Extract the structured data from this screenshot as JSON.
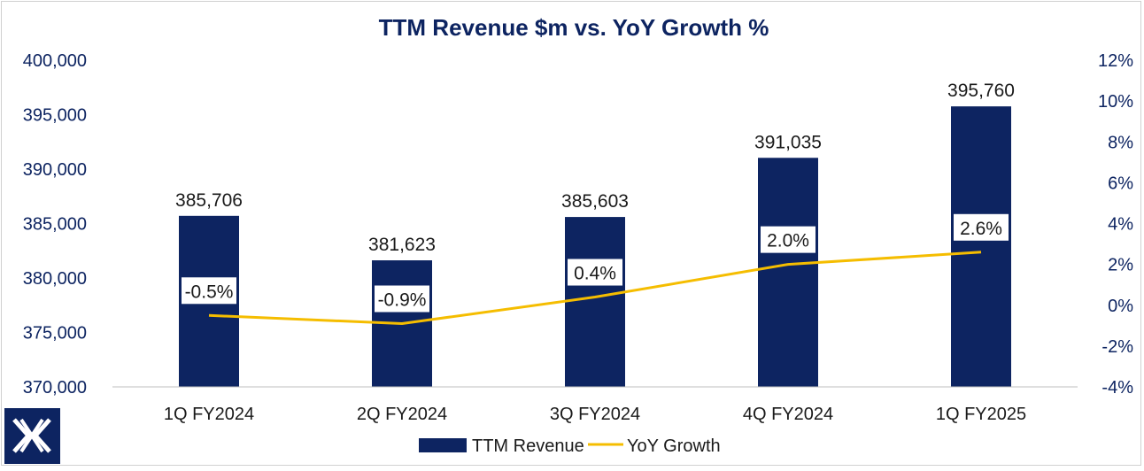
{
  "chart_data": {
    "type": "bar+line",
    "title": "TTM Revenue $m vs. YoY Growth %",
    "categories": [
      "1Q FY2024",
      "2Q FY2024",
      "3Q FY2024",
      "4Q FY2024",
      "1Q FY2025"
    ],
    "series": [
      {
        "name": "TTM Revenue",
        "type": "bar",
        "axis": "left",
        "values": [
          385706,
          381623,
          385603,
          391035,
          395760
        ],
        "labels": [
          "385,706",
          "381,623",
          "385,603",
          "391,035",
          "395,760"
        ]
      },
      {
        "name": "YoY Growth",
        "type": "line",
        "axis": "right",
        "values": [
          -0.5,
          -0.9,
          0.4,
          2.0,
          2.6
        ],
        "labels": [
          "-0.5%",
          "-0.9%",
          "0.4%",
          "2.0%",
          "2.6%"
        ]
      }
    ],
    "y_left": {
      "min": 370000,
      "max": 400000,
      "ticks": [
        370000,
        375000,
        380000,
        385000,
        390000,
        395000,
        400000
      ],
      "tick_labels": [
        "370,000",
        "375,000",
        "380,000",
        "385,000",
        "390,000",
        "395,000",
        "400,000"
      ]
    },
    "y_right": {
      "min": -4,
      "max": 12,
      "ticks": [
        -4,
        -2,
        0,
        2,
        4,
        6,
        8,
        10,
        12
      ],
      "tick_labels": [
        "-4%",
        "-2%",
        "0%",
        "2%",
        "4%",
        "6%",
        "8%",
        "10%",
        "12%"
      ]
    },
    "grid": false,
    "legend_position": "bottom",
    "colors": {
      "bar": "#0d2461",
      "line": "#f5bd00",
      "title": "#0d2461",
      "logo_bg": "#0d2461"
    }
  },
  "logo": {
    "name": "X logo"
  }
}
